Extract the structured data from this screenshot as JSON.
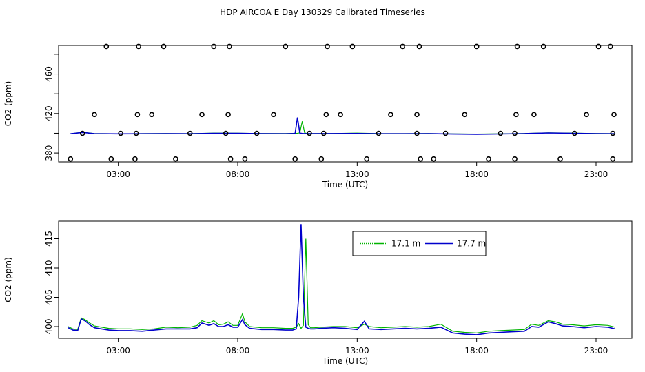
{
  "title": "HDP AIRCOA E  Day 130329  Calibrated Timeseries",
  "colors": {
    "green": "#00b400",
    "blue": "#0000cc",
    "axis": "#000000"
  },
  "chart_data": [
    {
      "type": "scatter+line",
      "xlabel": "Time (UTC)",
      "ylabel": "CO2 (ppm)",
      "xlim": [
        0.5,
        24.5
      ],
      "ylim": [
        371,
        489
      ],
      "x_ticks": [
        3,
        8,
        13,
        18,
        23
      ],
      "x_tick_labels": [
        "03:00",
        "08:00",
        "13:00",
        "18:00",
        "23:00"
      ],
      "y_ticks": [
        380,
        400,
        420,
        440,
        460,
        480
      ],
      "y_tick_labels": [
        "380",
        "",
        "420",
        "",
        "460",
        ""
      ],
      "calibration_points": {
        "x": [
          1.0,
          1.5,
          2.0,
          2.5,
          2.7,
          3.1,
          3.7,
          3.75,
          3.8,
          3.85,
          4.4,
          4.9,
          5.4,
          6.0,
          6.5,
          7.0,
          7.5,
          7.6,
          7.65,
          7.7,
          8.3,
          8.8,
          9.5,
          10.0,
          10.4,
          11.0,
          11.5,
          11.6,
          11.7,
          11.75,
          12.3,
          12.8,
          13.4,
          13.9,
          14.4,
          14.9,
          15.5,
          15.5,
          15.6,
          15.65,
          16.2,
          16.7,
          17.5,
          18.0,
          18.5,
          19.0,
          19.6,
          19.6,
          19.65,
          19.7,
          20.4,
          20.8,
          21.5,
          22.1,
          22.6,
          23.1,
          23.6,
          23.7,
          23.7,
          23.75
        ],
        "y": [
          374,
          400,
          419,
          488,
          374,
          400,
          374,
          400,
          419,
          488,
          419,
          488,
          374,
          400,
          419,
          488,
          400,
          419,
          488,
          374,
          374,
          400,
          419,
          488,
          374,
          400,
          374,
          400,
          419,
          488,
          419,
          488,
          374,
          400,
          419,
          488,
          400,
          419,
          488,
          374,
          374,
          400,
          419,
          488,
          374,
          400,
          374,
          400,
          419,
          488,
          419,
          488,
          374,
          400,
          419,
          488,
          488,
          374,
          400,
          419
        ]
      },
      "series": [
        {
          "name": "",
          "color": "#00b400",
          "x": [
            1.0,
            1.5,
            2.0,
            3.0,
            4.0,
            5.0,
            6.0,
            7.0,
            8.0,
            9.0,
            10.0,
            10.5,
            10.6,
            10.7,
            10.8,
            10.9,
            11.0,
            12.0,
            13.0,
            14.0,
            15.0,
            16.0,
            17.0,
            18.0,
            19.0,
            20.0,
            21.0,
            22.0,
            23.0,
            23.8
          ],
          "y": [
            399.5,
            401,
            399.8,
            399.5,
            399.6,
            399.7,
            399.6,
            400.2,
            400.1,
            399.8,
            399.7,
            400,
            400.5,
            412,
            400.5,
            399.8,
            399.7,
            399.8,
            400.2,
            399.6,
            399.6,
            399.7,
            399.4,
            399.2,
            399.5,
            399.8,
            400.5,
            400.2,
            399.8,
            399.6
          ]
        },
        {
          "name": "",
          "color": "#0000cc",
          "x": [
            1.0,
            1.5,
            2.0,
            3.0,
            4.0,
            5.0,
            6.0,
            7.0,
            8.0,
            9.0,
            10.0,
            10.4,
            10.5,
            10.6,
            10.7,
            10.9,
            11.0,
            12.0,
            13.0,
            14.0,
            15.0,
            16.0,
            17.0,
            18.0,
            19.0,
            20.0,
            21.0,
            22.0,
            23.0,
            23.8
          ],
          "y": [
            399.5,
            400.8,
            399.6,
            399.4,
            399.5,
            399.6,
            399.5,
            399.9,
            399.9,
            399.6,
            399.5,
            399.8,
            416,
            400.2,
            399.8,
            399.6,
            399.6,
            399.7,
            399.8,
            399.5,
            399.5,
            399.6,
            399.2,
            399.0,
            399.3,
            399.6,
            400.3,
            400.0,
            399.6,
            399.5
          ]
        }
      ]
    },
    {
      "type": "line",
      "xlabel": "Time (UTC)",
      "ylabel": "CO2 (ppm)",
      "xlim": [
        0.5,
        24.5
      ],
      "ylim": [
        398,
        418
      ],
      "x_ticks": [
        3,
        8,
        13,
        18,
        23
      ],
      "x_tick_labels": [
        "03:00",
        "08:00",
        "13:00",
        "18:00",
        "23:00"
      ],
      "y_ticks": [
        400,
        405,
        410,
        415
      ],
      "y_tick_labels": [
        "400",
        "405",
        "410",
        "415"
      ],
      "legend": {
        "placement": "top-center",
        "entries": [
          "17.1 m",
          "17.7 m"
        ]
      },
      "series": [
        {
          "name": "17.1 m",
          "color": "#00b400",
          "x": [
            0.9,
            1.1,
            1.3,
            1.45,
            1.6,
            1.8,
            2.0,
            2.3,
            2.6,
            3.0,
            3.5,
            4.0,
            4.5,
            5.0,
            5.5,
            6.0,
            6.3,
            6.5,
            6.8,
            7.0,
            7.2,
            7.4,
            7.6,
            7.8,
            8.0,
            8.2,
            8.3,
            8.5,
            9.0,
            9.5,
            10.0,
            10.3,
            10.45,
            10.55,
            10.65,
            10.75,
            10.85,
            10.95,
            11.05,
            11.2,
            11.5,
            12.0,
            12.5,
            13.0,
            13.3,
            13.5,
            14.0,
            14.5,
            15.0,
            15.5,
            16.0,
            16.5,
            17.0,
            17.5,
            18.0,
            18.5,
            19.0,
            19.5,
            20.0,
            20.3,
            20.6,
            21.0,
            21.3,
            21.6,
            22.0,
            22.5,
            23.0,
            23.5,
            23.8
          ],
          "y": [
            400,
            399.6,
            399.5,
            401.5,
            401.2,
            400.6,
            400.1,
            399.9,
            399.7,
            399.6,
            399.6,
            399.5,
            399.6,
            399.9,
            399.8,
            399.9,
            400.2,
            401.0,
            400.6,
            401.0,
            400.3,
            400.4,
            400.8,
            400.2,
            400.2,
            402.2,
            400.8,
            400.0,
            399.8,
            399.8,
            399.7,
            399.7,
            399.9,
            400.5,
            399.7,
            400.2,
            415.0,
            400.3,
            399.8,
            399.8,
            399.9,
            400.0,
            400.0,
            399.8,
            400.4,
            400.0,
            399.8,
            399.9,
            400.0,
            399.9,
            400.0,
            400.4,
            399.2,
            399.0,
            398.9,
            399.2,
            399.3,
            399.4,
            399.5,
            400.4,
            400.2,
            401.0,
            400.8,
            400.4,
            400.3,
            400.1,
            400.3,
            400.2,
            399.9
          ]
        },
        {
          "name": "17.7 m",
          "color": "#0000cc",
          "x": [
            0.9,
            1.1,
            1.3,
            1.45,
            1.6,
            1.8,
            2.0,
            2.3,
            2.6,
            3.0,
            3.5,
            4.0,
            4.5,
            5.0,
            5.5,
            6.0,
            6.3,
            6.5,
            6.8,
            7.0,
            7.2,
            7.4,
            7.6,
            7.8,
            8.0,
            8.2,
            8.3,
            8.5,
            9.0,
            9.5,
            10.0,
            10.3,
            10.45,
            10.55,
            10.65,
            10.75,
            10.85,
            10.95,
            11.05,
            11.2,
            11.5,
            12.0,
            12.5,
            13.0,
            13.3,
            13.5,
            14.0,
            14.5,
            15.0,
            15.5,
            16.0,
            16.5,
            17.0,
            17.5,
            18.0,
            18.5,
            19.0,
            19.5,
            20.0,
            20.3,
            20.6,
            21.0,
            21.3,
            21.6,
            22.0,
            22.5,
            23.0,
            23.5,
            23.8
          ],
          "y": [
            399.8,
            399.4,
            399.3,
            401.3,
            401.0,
            400.3,
            399.8,
            399.6,
            399.4,
            399.3,
            399.3,
            399.2,
            399.4,
            399.6,
            399.6,
            399.6,
            399.8,
            400.6,
            400.2,
            400.5,
            400.0,
            400.0,
            400.3,
            399.9,
            399.9,
            401.2,
            400.3,
            399.7,
            399.5,
            399.5,
            399.4,
            399.4,
            399.6,
            405.0,
            417.5,
            405.0,
            399.9,
            399.7,
            399.6,
            399.6,
            399.7,
            399.8,
            399.7,
            399.5,
            400.9,
            399.6,
            399.5,
            399.6,
            399.7,
            399.6,
            399.7,
            399.9,
            398.9,
            398.7,
            398.6,
            398.9,
            399.0,
            399.1,
            399.2,
            400.0,
            399.9,
            400.8,
            400.5,
            400.1,
            400.0,
            399.8,
            400.0,
            399.9,
            399.6
          ]
        }
      ]
    }
  ]
}
